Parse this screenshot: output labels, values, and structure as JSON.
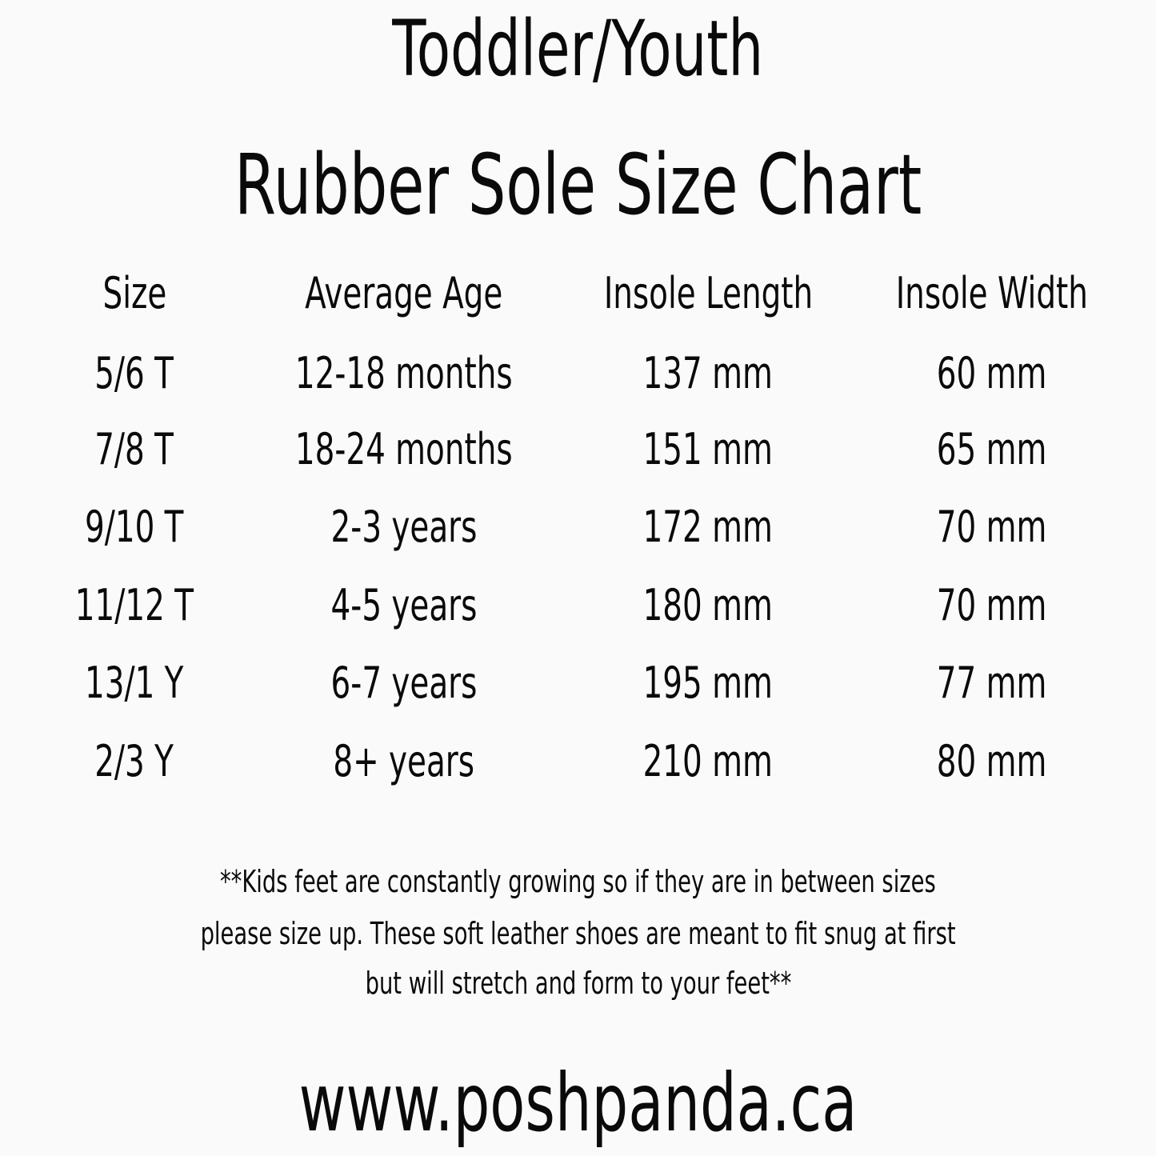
{
  "title_line1": "Toddler/Youth",
  "title_line2": "Rubber Sole Size Chart",
  "table": {
    "headers": [
      "Size",
      "Average Age",
      "Insole Length",
      "Insole Width"
    ],
    "rows": [
      [
        "5/6 T",
        "12-18 months",
        "137 mm",
        "60 mm"
      ],
      [
        "7/8 T",
        "18-24 months",
        "151 mm",
        "65 mm"
      ],
      [
        "9/10 T",
        "2-3 years",
        "172 mm",
        "70 mm"
      ],
      [
        "11/12 T",
        "4-5 years",
        "180 mm",
        "70 mm"
      ],
      [
        "13/1 Y",
        "6-7 years",
        "195 mm",
        "77 mm"
      ],
      [
        "2/3 Y",
        "8+ years",
        "210 mm",
        "80 mm"
      ]
    ]
  },
  "note_lines": [
    "**Kids feet are constantly growing so if they are in between sizes",
    "please size up. These soft leather shoes are meant to fit snug at first",
    "but will stretch and form to your feet**"
  ],
  "website": "www.poshpanda.ca"
}
